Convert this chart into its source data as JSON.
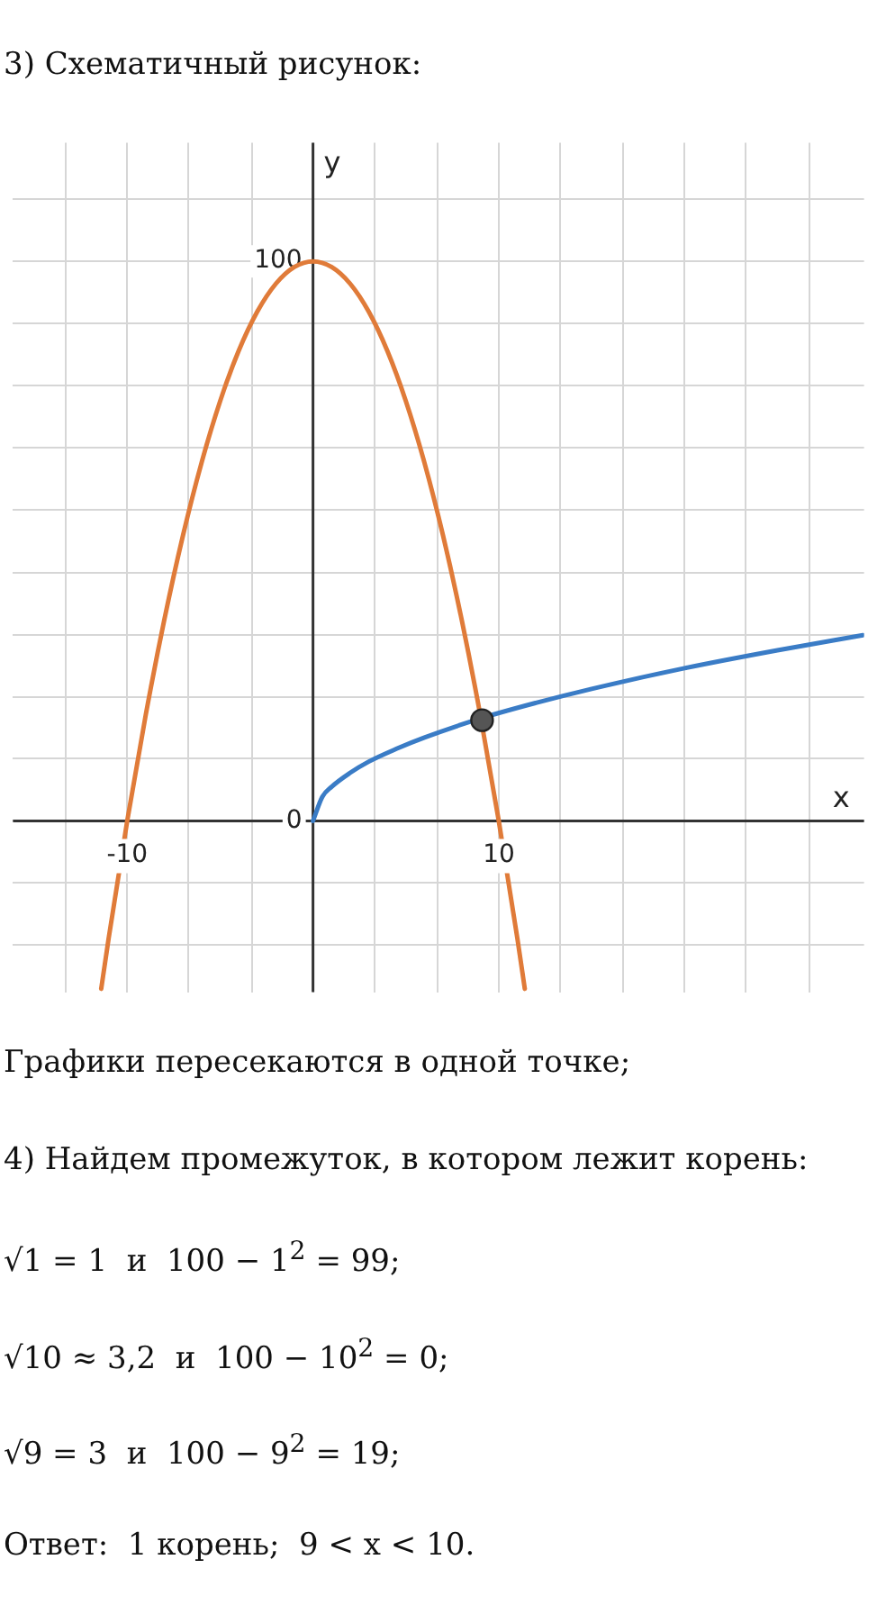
{
  "chart_data": {
    "type": "line",
    "title": "3) Схематичный рисунок:",
    "xlabel": "x",
    "ylabel": "y",
    "xlim": [
      -16.15,
      29.66
    ],
    "ylim": [
      -30.6,
      121.2
    ],
    "xticks": [
      {
        "value": -13.3,
        "label": null
      },
      -10,
      {
        "value": -6.7,
        "label": null
      },
      {
        "value": -3.3,
        "label": null
      },
      {
        "value": 0,
        "label": null
      },
      {
        "value": 3.3,
        "label": null
      },
      {
        "value": 6.7,
        "label": null
      },
      10,
      {
        "value": 13.3,
        "label": null
      },
      {
        "value": 16.7,
        "label": null
      },
      {
        "value": 20,
        "label": null
      },
      {
        "value": 23.3,
        "label": null
      },
      {
        "value": 26.7,
        "label": null
      }
    ],
    "yticks": [
      {
        "value": -22.2,
        "label": null
      },
      {
        "value": -11.1,
        "label": null
      },
      0,
      {
        "value": 11.1,
        "label": null
      },
      {
        "value": 22.2,
        "label": null
      },
      {
        "value": 33.3,
        "label": null
      },
      {
        "value": 44.4,
        "label": null
      },
      {
        "value": 55.6,
        "label": null
      },
      {
        "value": 66.7,
        "label": null
      },
      {
        "value": 77.8,
        "label": null
      },
      {
        "value": 88.9,
        "label": null
      },
      100,
      {
        "value": 111.1,
        "label": null
      }
    ],
    "grid": true,
    "legend": false,
    "marker": "none",
    "line_style": "solid",
    "series": [
      {
        "color": "#e07b39",
        "x": [
          -11.4,
          -11,
          -10,
          -9,
          -8,
          -7,
          -6,
          -5,
          -4,
          -3,
          -2,
          -1,
          0,
          1,
          2,
          3,
          4,
          5,
          6,
          7,
          8,
          9,
          10,
          11,
          11.4
        ],
        "values": [
          -30,
          -21,
          0,
          19,
          36,
          51,
          64,
          75,
          84,
          91,
          96,
          99,
          100,
          99,
          96,
          91,
          84,
          75,
          64,
          51,
          36,
          19,
          0,
          -21,
          -30
        ]
      },
      {
        "color": "#3a7cc6",
        "x": [
          0,
          0.5,
          1,
          2,
          3,
          4.5,
          6,
          9.1,
          12,
          15,
          20,
          25,
          29.6
        ],
        "values": [
          0,
          4.3,
          6.1,
          8.6,
          10.6,
          12.9,
          14.9,
          18.4,
          21.1,
          23.6,
          27.3,
          30.5,
          33.2
        ]
      },
      {
        "type": "scatter",
        "color": "#555555",
        "marker": "circle",
        "x": [
          9.1
        ],
        "values": [
          18
        ]
      }
    ],
    "annotations": [
      "Графики пересекаются в одной точке;",
      "4) Найдем промежуток, в котором лежит корень:",
      "√1 = 1  и  100 − 1$^{2}$ = 99;",
      "√10 ≈ 3,2  и  100 − 10$^{2}$ = 0;",
      "√9 = 3  и  100 − 9$^{2}$ = 19;",
      "Ответ:  1 корень;  9 < x < 10."
    ]
  }
}
